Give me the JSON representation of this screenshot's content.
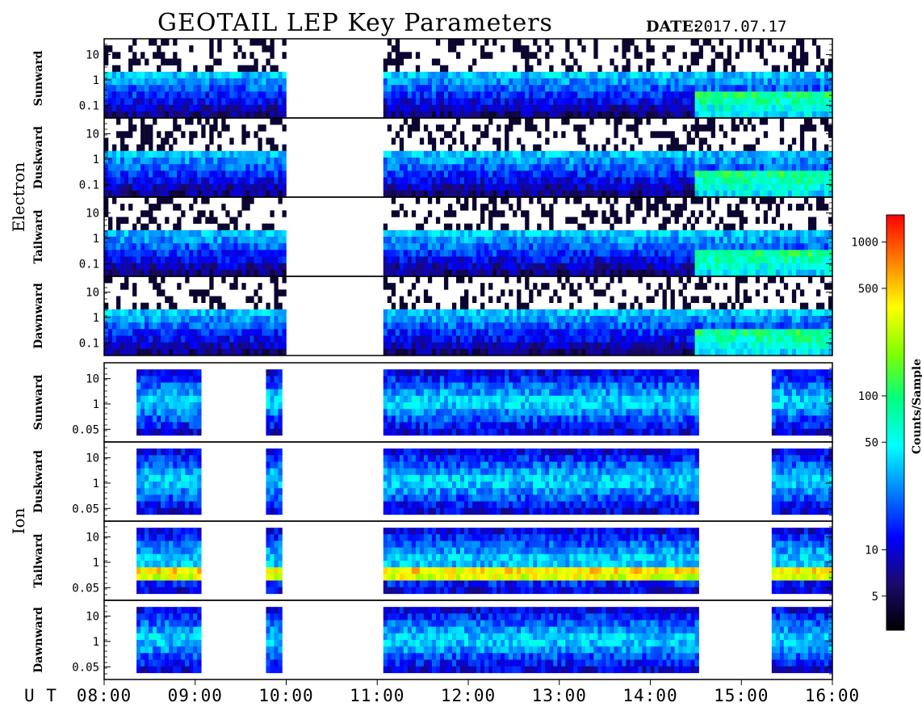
{
  "title": "GEOTAIL LEP Key Parameters",
  "date_label": "DATE:",
  "date_value": "2017.07.17",
  "ut_label": "U T",
  "chart_data": {
    "type": "heatmap",
    "x_unit_label": "U T",
    "x_range": [
      "08:00",
      "16:00"
    ],
    "x_ticks": [
      "08:00",
      "09:00",
      "10:00",
      "11:00",
      "12:00",
      "13:00",
      "14:00",
      "15:00",
      "16:00"
    ],
    "data_gaps_ut": [
      [
        "10:00",
        "11:05"
      ]
    ],
    "groups": [
      {
        "species": "Electron",
        "y_ticks": [
          "10",
          "1",
          "0.1"
        ],
        "panels": [
          {
            "name": "Sunward",
            "row": "electron-sunward"
          },
          {
            "name": "Duskward",
            "row": "electron-duskward"
          },
          {
            "name": "Tailward",
            "row": "electron-tailward"
          },
          {
            "name": "Dawnward",
            "row": "electron-dawnward"
          }
        ]
      },
      {
        "species": "Ion",
        "y_ticks": [
          "10",
          "1",
          "0.05"
        ],
        "panels": [
          {
            "name": "Sunward",
            "row": "ion-sunward"
          },
          {
            "name": "Duskward",
            "row": "ion-duskward"
          },
          {
            "name": "Tailward",
            "row": "ion-tailward"
          },
          {
            "name": "Dawnward",
            "row": "ion-dawnward"
          }
        ]
      }
    ],
    "colorbar": {
      "label": "Counts/Sample",
      "scale": "log",
      "range": [
        3,
        1500
      ],
      "ticks": [
        "1000",
        "500",
        "100",
        "50",
        "10",
        "5"
      ],
      "tick_values": [
        1000,
        500,
        100,
        50,
        10,
        5
      ],
      "colors": [
        "#000000",
        "#1a0a6b",
        "#0000ff",
        "#0080ff",
        "#00ffff",
        "#00ff80",
        "#80ff00",
        "#ffff00",
        "#ff8000",
        "#ff0000"
      ]
    }
  }
}
